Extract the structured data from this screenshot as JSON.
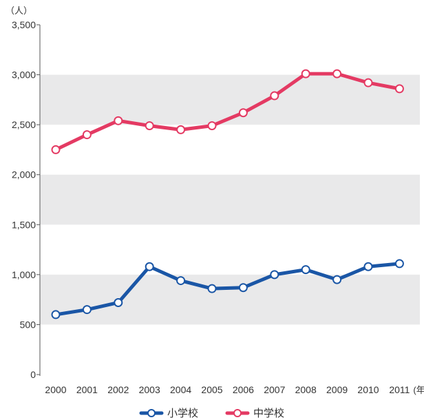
{
  "chart_data": {
    "type": "line",
    "title": "",
    "ylabel_unit": "（人）",
    "xlabel_unit": "(年)",
    "categories": [
      "2000",
      "2001",
      "2002",
      "2003",
      "2004",
      "2005",
      "2006",
      "2007",
      "2008",
      "2009",
      "2010",
      "2011"
    ],
    "ylim": [
      0,
      3500
    ],
    "yticks": [
      0,
      500,
      1000,
      1500,
      2000,
      2500,
      3000,
      3500
    ],
    "ytick_labels": [
      "0",
      "500",
      "1,000",
      "1,500",
      "2,000",
      "2,500",
      "3,000",
      "3,500"
    ],
    "grid": "alternating horizontal bands",
    "legend_position": "bottom-center",
    "series": [
      {
        "name": "小学校",
        "color": "#1a56a6",
        "values": [
          600,
          650,
          720,
          1080,
          940,
          860,
          870,
          1000,
          1050,
          950,
          1080,
          1110
        ]
      },
      {
        "name": "中学校",
        "color": "#e43a63",
        "values": [
          2250,
          2400,
          2540,
          2490,
          2450,
          2490,
          2620,
          2790,
          3010,
          3010,
          2920,
          2860
        ]
      }
    ],
    "band_color": "#e9e9ea"
  }
}
